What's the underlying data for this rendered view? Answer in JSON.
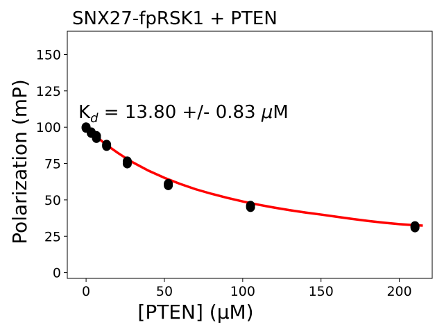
{
  "chart_data": {
    "type": "scatter",
    "title": "SNX27-fpRSK1 + PTEN",
    "xlabel": "[PTEN] (µM)",
    "ylabel": "Polarization (mP)",
    "xlim": [
      -12,
      221
    ],
    "ylim": [
      -4,
      166
    ],
    "xticks": [
      0,
      50,
      100,
      150,
      200
    ],
    "yticks": [
      0,
      25,
      50,
      75,
      100,
      125,
      150
    ],
    "grid": false,
    "annotation": {
      "prefix": "K",
      "subscript": "d",
      "text": " = 13.80 +/- 0.83 ",
      "mu": "μ",
      "unit": "M"
    },
    "series": [
      {
        "name": "data",
        "color": "#000000",
        "points": [
          [
            0,
            100
          ],
          [
            0,
            99.5
          ],
          [
            3.3,
            96.5
          ],
          [
            3.3,
            96
          ],
          [
            6.6,
            94
          ],
          [
            6.6,
            92.5
          ],
          [
            13.1,
            88
          ],
          [
            13.1,
            87
          ],
          [
            26.3,
            76.5
          ],
          [
            26.3,
            75
          ],
          [
            52.5,
            61
          ],
          [
            52.5,
            60
          ],
          [
            105,
            46
          ],
          [
            105,
            45
          ],
          [
            210,
            32
          ],
          [
            210,
            31
          ]
        ]
      },
      {
        "name": "fit",
        "color": "#ff0000",
        "points": [
          [
            0,
            100
          ],
          [
            5,
            95
          ],
          [
            10,
            90.5
          ],
          [
            15,
            86.3
          ],
          [
            20,
            82.5
          ],
          [
            25,
            79
          ],
          [
            30,
            75.7
          ],
          [
            40,
            70
          ],
          [
            50,
            65.2
          ],
          [
            60,
            61
          ],
          [
            70,
            57.3
          ],
          [
            80,
            54.2
          ],
          [
            90,
            51.4
          ],
          [
            100,
            48.9
          ],
          [
            110,
            46.7
          ],
          [
            120,
            44.7
          ],
          [
            130,
            42.9
          ],
          [
            140,
            41.3
          ],
          [
            150,
            39.9
          ],
          [
            160,
            38.4
          ],
          [
            170,
            36.9
          ],
          [
            180,
            35.5
          ],
          [
            190,
            34.3
          ],
          [
            200,
            33.3
          ],
          [
            210,
            32.6
          ],
          [
            215,
            32.3
          ]
        ]
      }
    ]
  }
}
